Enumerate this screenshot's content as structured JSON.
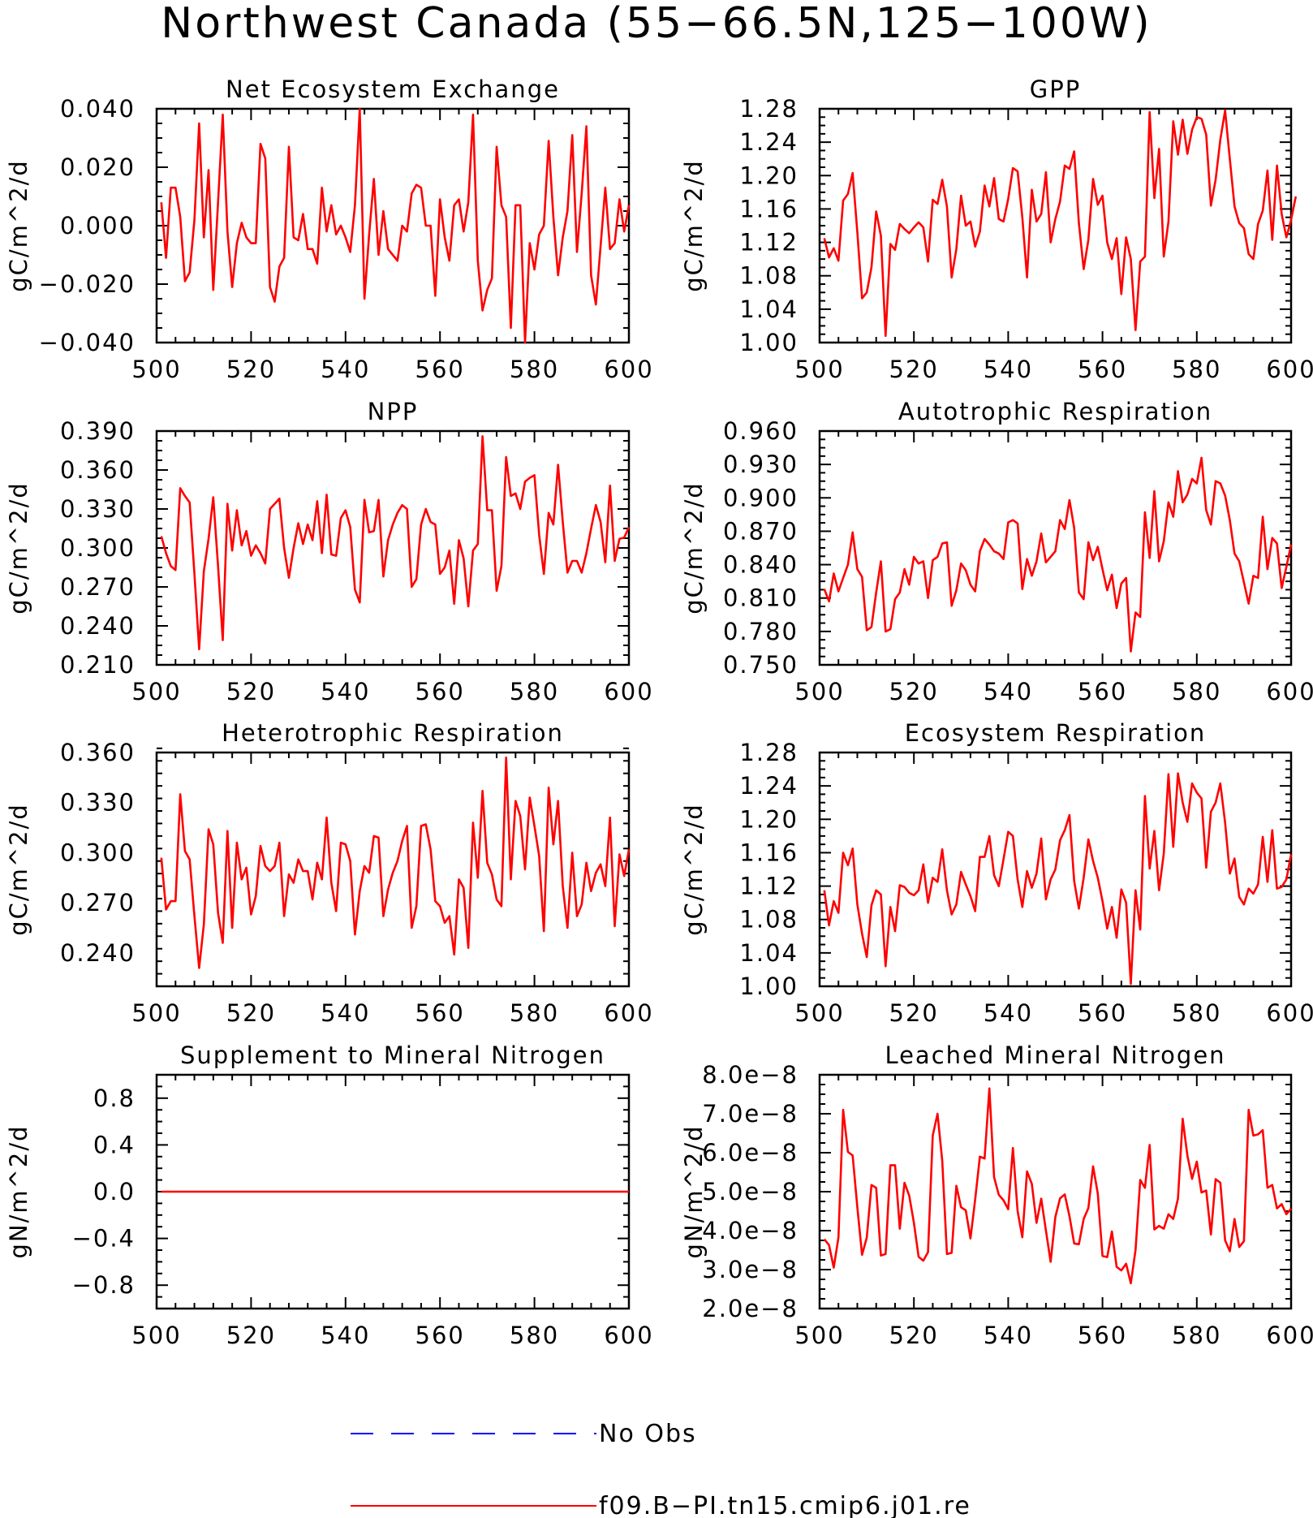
{
  "figure": {
    "title": "Northwest Canada (55−66.5N,125−100W)",
    "x_ticks": [
      500,
      520,
      540,
      560,
      580,
      600
    ],
    "legend": [
      {
        "label": "No Obs",
        "color": "#0000ff",
        "style": "dashed"
      },
      {
        "label": "f09.B−PI.tn15.cmip6.j01.re",
        "color": "#ff0000",
        "style": "solid"
      }
    ]
  },
  "chart_data": [
    {
      "type": "line",
      "title": "Net Ecosystem Exchange",
      "ylabel": "gC/m^2/d",
      "xlim": [
        500,
        600
      ],
      "ylim": [
        -0.04,
        0.04
      ],
      "y_ticks": [
        -0.04,
        -0.02,
        0,
        0.02,
        0.04
      ],
      "y_tick_labels": [
        "−0.040",
        "−0.020",
        "0.000",
        "0.020",
        "0.040"
      ],
      "x_ticks": [
        500,
        520,
        540,
        560,
        580,
        600
      ],
      "series": [
        {
          "color": "#ff0000",
          "x_start": 501,
          "values": [
            0.008,
            -0.011,
            0.013,
            0.013,
            0.003,
            -0.019,
            -0.016,
            0.002,
            0.035,
            -0.004,
            0.019,
            -0.022,
            0.008,
            0.038,
            -0.002,
            -0.021,
            -0.006,
            0.001,
            -0.004,
            -0.006,
            -0.006,
            0.028,
            0.023,
            -0.021,
            -0.026,
            -0.014,
            -0.011,
            0.027,
            -0.004,
            -0.005,
            0.004,
            -0.008,
            -0.008,
            -0.013,
            0.013,
            -0.002,
            0.007,
            -0.003,
            0.0,
            -0.004,
            -0.009,
            0.007,
            0.04,
            -0.025,
            -0.003,
            0.016,
            -0.01,
            0.005,
            -0.008,
            -0.01,
            -0.012,
            0.0,
            -0.002,
            0.011,
            0.014,
            0.013,
            0.0,
            0.0,
            -0.024,
            0.009,
            -0.004,
            -0.012,
            0.007,
            0.009,
            -0.002,
            0.008,
            0.038,
            -0.012,
            -0.029,
            -0.022,
            -0.018,
            0.027,
            0.007,
            0.003,
            -0.035,
            0.007,
            0.007,
            -0.04,
            -0.006,
            -0.015,
            -0.003,
            -0.0,
            0.029,
            0.003,
            -0.017,
            -0.004,
            0.005,
            0.031,
            -0.009,
            0.011,
            0.034,
            -0.017,
            -0.027,
            -0.007,
            0.013,
            -0.008,
            -0.006,
            0.009,
            -0.002,
            0.007
          ]
        }
      ]
    },
    {
      "type": "line",
      "title": "GPP",
      "ylabel": "gC/m^2/d",
      "xlim": [
        500,
        600
      ],
      "ylim": [
        1.0,
        1.28
      ],
      "y_ticks": [
        1.0,
        1.04,
        1.08,
        1.12,
        1.16,
        1.2,
        1.24,
        1.28
      ],
      "y_tick_labels": [
        "1.00",
        "1.04",
        "1.08",
        "1.12",
        "1.16",
        "1.20",
        "1.24",
        "1.28"
      ],
      "x_ticks": [
        500,
        520,
        540,
        560,
        580,
        600
      ],
      "series": [
        {
          "color": "#ff0000",
          "x_start": 501,
          "values": [
            1.125,
            1.102,
            1.113,
            1.098,
            1.17,
            1.178,
            1.203,
            1.132,
            1.053,
            1.06,
            1.09,
            1.157,
            1.128,
            1.008,
            1.118,
            1.111,
            1.142,
            1.136,
            1.131,
            1.138,
            1.144,
            1.138,
            1.097,
            1.171,
            1.166,
            1.195,
            1.163,
            1.078,
            1.112,
            1.176,
            1.14,
            1.145,
            1.115,
            1.133,
            1.188,
            1.163,
            1.197,
            1.148,
            1.145,
            1.172,
            1.209,
            1.205,
            1.15,
            1.078,
            1.183,
            1.145,
            1.154,
            1.204,
            1.12,
            1.148,
            1.169,
            1.212,
            1.208,
            1.229,
            1.143,
            1.088,
            1.123,
            1.196,
            1.165,
            1.176,
            1.12,
            1.1,
            1.125,
            1.058,
            1.126,
            1.1,
            1.015,
            1.097,
            1.103,
            1.276,
            1.173,
            1.232,
            1.103,
            1.145,
            1.265,
            1.225,
            1.267,
            1.226,
            1.255,
            1.27,
            1.268,
            1.249,
            1.164,
            1.195,
            1.243,
            1.278,
            1.22,
            1.163,
            1.143,
            1.137,
            1.106,
            1.1,
            1.142,
            1.158,
            1.206,
            1.123,
            1.212,
            1.154,
            1.126,
            1.147,
            1.175
          ]
        }
      ]
    },
    {
      "type": "line",
      "title": "NPP",
      "ylabel": "gC/m^2/d",
      "xlim": [
        500,
        600
      ],
      "ylim": [
        0.21,
        0.39
      ],
      "y_ticks": [
        0.21,
        0.24,
        0.27,
        0.3,
        0.33,
        0.36,
        0.39
      ],
      "y_tick_labels": [
        "0.210",
        "0.240",
        "0.270",
        "0.300",
        "0.330",
        "0.360",
        "0.390"
      ],
      "x_ticks": [
        500,
        520,
        540,
        560,
        580,
        600
      ],
      "series": [
        {
          "color": "#ff0000",
          "x_start": 501,
          "values": [
            0.309,
            0.296,
            0.286,
            0.283,
            0.346,
            0.34,
            0.335,
            0.28,
            0.222,
            0.282,
            0.307,
            0.339,
            0.286,
            0.229,
            0.334,
            0.298,
            0.329,
            0.302,
            0.313,
            0.294,
            0.302,
            0.296,
            0.288,
            0.33,
            0.334,
            0.338,
            0.3,
            0.277,
            0.3,
            0.319,
            0.303,
            0.318,
            0.306,
            0.336,
            0.296,
            0.341,
            0.295,
            0.294,
            0.323,
            0.329,
            0.316,
            0.268,
            0.258,
            0.337,
            0.312,
            0.313,
            0.337,
            0.278,
            0.306,
            0.318,
            0.327,
            0.333,
            0.33,
            0.27,
            0.276,
            0.318,
            0.33,
            0.32,
            0.318,
            0.28,
            0.285,
            0.298,
            0.257,
            0.306,
            0.292,
            0.255,
            0.298,
            0.303,
            0.386,
            0.329,
            0.329,
            0.267,
            0.286,
            0.37,
            0.34,
            0.342,
            0.33,
            0.351,
            0.354,
            0.356,
            0.31,
            0.28,
            0.327,
            0.318,
            0.364,
            0.32,
            0.281,
            0.29,
            0.29,
            0.281,
            0.296,
            0.315,
            0.333,
            0.32,
            0.289,
            0.348,
            0.29,
            0.307,
            0.308,
            0.316
          ]
        }
      ]
    },
    {
      "type": "line",
      "title": "Autotrophic Respiration",
      "ylabel": "gC/m^2/d",
      "xlim": [
        500,
        600
      ],
      "ylim": [
        0.75,
        0.96
      ],
      "y_ticks": [
        0.75,
        0.78,
        0.81,
        0.84,
        0.87,
        0.9,
        0.93,
        0.96
      ],
      "y_tick_labels": [
        "0.750",
        "0.780",
        "0.810",
        "0.840",
        "0.870",
        "0.900",
        "0.930",
        "0.960"
      ],
      "x_ticks": [
        500,
        520,
        540,
        560,
        580,
        600
      ],
      "series": [
        {
          "color": "#ff0000",
          "x_start": 501,
          "values": [
            0.818,
            0.807,
            0.832,
            0.816,
            0.828,
            0.84,
            0.869,
            0.836,
            0.829,
            0.781,
            0.784,
            0.815,
            0.843,
            0.78,
            0.782,
            0.809,
            0.815,
            0.836,
            0.822,
            0.847,
            0.841,
            0.843,
            0.81,
            0.844,
            0.847,
            0.859,
            0.86,
            0.803,
            0.817,
            0.841,
            0.835,
            0.822,
            0.816,
            0.852,
            0.863,
            0.858,
            0.852,
            0.85,
            0.845,
            0.878,
            0.88,
            0.877,
            0.818,
            0.845,
            0.83,
            0.843,
            0.868,
            0.842,
            0.847,
            0.852,
            0.88,
            0.872,
            0.898,
            0.873,
            0.815,
            0.809,
            0.86,
            0.844,
            0.856,
            0.836,
            0.817,
            0.831,
            0.801,
            0.823,
            0.828,
            0.762,
            0.797,
            0.793,
            0.887,
            0.846,
            0.906,
            0.843,
            0.861,
            0.896,
            0.883,
            0.924,
            0.896,
            0.903,
            0.917,
            0.913,
            0.936,
            0.889,
            0.876,
            0.915,
            0.913,
            0.902,
            0.88,
            0.85,
            0.843,
            0.824,
            0.805,
            0.83,
            0.828,
            0.883,
            0.836,
            0.864,
            0.859,
            0.819,
            0.838,
            0.858
          ]
        }
      ]
    },
    {
      "type": "line",
      "title": "Heterotrophic Respiration",
      "ylabel": "gC/m^2/d",
      "xlim": [
        500,
        600
      ],
      "ylim": [
        0.22,
        0.36
      ],
      "y_ticks": [
        0.24,
        0.27,
        0.3,
        0.33,
        0.36
      ],
      "y_tick_labels": [
        "0.240",
        "0.270",
        "0.300",
        "0.330",
        "0.360"
      ],
      "x_ticks": [
        500,
        520,
        540,
        560,
        580,
        600
      ],
      "series": [
        {
          "color": "#ff0000",
          "x_start": 501,
          "values": [
            0.297,
            0.266,
            0.271,
            0.271,
            0.335,
            0.301,
            0.296,
            0.262,
            0.231,
            0.257,
            0.314,
            0.305,
            0.264,
            0.246,
            0.313,
            0.255,
            0.306,
            0.284,
            0.291,
            0.263,
            0.274,
            0.304,
            0.292,
            0.289,
            0.292,
            0.306,
            0.262,
            0.287,
            0.282,
            0.296,
            0.289,
            0.289,
            0.272,
            0.294,
            0.284,
            0.321,
            0.282,
            0.265,
            0.306,
            0.305,
            0.295,
            0.251,
            0.277,
            0.292,
            0.288,
            0.31,
            0.309,
            0.262,
            0.278,
            0.288,
            0.295,
            0.307,
            0.316,
            0.255,
            0.268,
            0.316,
            0.317,
            0.302,
            0.271,
            0.268,
            0.258,
            0.262,
            0.239,
            0.284,
            0.279,
            0.243,
            0.318,
            0.285,
            0.337,
            0.294,
            0.287,
            0.272,
            0.268,
            0.357,
            0.284,
            0.331,
            0.322,
            0.29,
            0.333,
            0.316,
            0.298,
            0.253,
            0.339,
            0.305,
            0.331,
            0.28,
            0.255,
            0.3,
            0.262,
            0.269,
            0.294,
            0.277,
            0.288,
            0.293,
            0.28,
            0.321,
            0.256,
            0.299,
            0.286,
            0.302
          ]
        }
      ]
    },
    {
      "type": "line",
      "title": "Ecosystem Respiration",
      "ylabel": "gC/m^2/d",
      "xlim": [
        500,
        600
      ],
      "ylim": [
        1.0,
        1.28
      ],
      "y_ticks": [
        1.0,
        1.04,
        1.08,
        1.12,
        1.16,
        1.2,
        1.24,
        1.28
      ],
      "y_tick_labels": [
        "1.00",
        "1.04",
        "1.08",
        "1.12",
        "1.16",
        "1.20",
        "1.24",
        "1.28"
      ],
      "x_ticks": [
        500,
        520,
        540,
        560,
        580,
        600
      ],
      "series": [
        {
          "color": "#ff0000",
          "x_start": 501,
          "values": [
            1.115,
            1.073,
            1.102,
            1.088,
            1.16,
            1.145,
            1.165,
            1.098,
            1.063,
            1.035,
            1.097,
            1.115,
            1.11,
            1.024,
            1.095,
            1.066,
            1.121,
            1.119,
            1.112,
            1.109,
            1.115,
            1.146,
            1.1,
            1.13,
            1.125,
            1.164,
            1.115,
            1.086,
            1.098,
            1.137,
            1.122,
            1.108,
            1.09,
            1.155,
            1.155,
            1.18,
            1.133,
            1.12,
            1.152,
            1.185,
            1.18,
            1.128,
            1.095,
            1.138,
            1.118,
            1.135,
            1.177,
            1.104,
            1.128,
            1.14,
            1.175,
            1.187,
            1.205,
            1.126,
            1.093,
            1.13,
            1.176,
            1.15,
            1.13,
            1.102,
            1.069,
            1.095,
            1.058,
            1.116,
            1.1,
            1.003,
            1.115,
            1.068,
            1.228,
            1.141,
            1.186,
            1.115,
            1.159,
            1.254,
            1.167,
            1.255,
            1.22,
            1.197,
            1.243,
            1.232,
            1.225,
            1.142,
            1.209,
            1.22,
            1.243,
            1.196,
            1.135,
            1.153,
            1.107,
            1.098,
            1.117,
            1.111,
            1.122,
            1.179,
            1.125,
            1.187,
            1.117,
            1.119,
            1.128,
            1.158
          ]
        }
      ]
    },
    {
      "type": "line",
      "title": "Supplement to Mineral Nitrogen",
      "ylabel": "gN/m^2/d",
      "xlim": [
        500,
        600
      ],
      "ylim": [
        -1.0,
        1.0
      ],
      "y_ticks": [
        -0.8,
        -0.4,
        0,
        0.4,
        0.8
      ],
      "y_tick_labels": [
        "−0.8",
        "−0.4",
        "0.0",
        "0.4",
        "0.8"
      ],
      "x_ticks": [
        500,
        520,
        540,
        560,
        580,
        600
      ],
      "series": [
        {
          "color": "#ff0000",
          "x_start": 501,
          "constant": 0,
          "count": 100
        }
      ]
    },
    {
      "type": "line",
      "title": "Leached Mineral Nitrogen",
      "ylabel": "gN/m^2/d",
      "xlim": [
        500,
        600
      ],
      "ylim": [
        2e-08,
        8e-08
      ],
      "y_ticks": [
        2e-08,
        3e-08,
        4e-08,
        5e-08,
        6e-08,
        7e-08,
        8e-08
      ],
      "y_tick_labels": [
        "2.0e−8",
        "3.0e−8",
        "4.0e−8",
        "5.0e−8",
        "6.0e−8",
        "7.0e−8",
        "8.0e−8"
      ],
      "x_ticks": [
        500,
        520,
        540,
        560,
        580,
        600
      ],
      "series": [
        {
          "color": "#ff0000",
          "x_start": 501,
          "scale": 1e-08,
          "values": [
            3.78,
            3.63,
            3.05,
            3.82,
            7.1,
            6.02,
            5.93,
            4.6,
            3.38,
            3.82,
            5.17,
            5.1,
            3.36,
            3.4,
            5.68,
            5.68,
            4.05,
            5.23,
            4.9,
            4.2,
            3.33,
            3.23,
            3.45,
            6.44,
            7.0,
            5.8,
            3.4,
            3.43,
            5.15,
            4.6,
            4.52,
            3.8,
            4.8,
            5.9,
            5.85,
            7.65,
            5.37,
            4.92,
            4.78,
            4.55,
            6.12,
            4.5,
            3.83,
            5.52,
            5.2,
            4.2,
            4.82,
            4.0,
            3.2,
            4.35,
            4.83,
            4.93,
            4.37,
            3.67,
            3.65,
            4.3,
            4.58,
            5.65,
            4.95,
            3.35,
            3.32,
            3.98,
            3.07,
            2.98,
            3.15,
            2.65,
            3.5,
            5.3,
            5.1,
            6.2,
            4.03,
            4.12,
            4.05,
            4.42,
            4.3,
            4.82,
            6.87,
            5.93,
            5.33,
            5.77,
            4.98,
            5.03,
            3.9,
            5.32,
            5.23,
            3.75,
            3.47,
            4.3,
            3.58,
            3.73,
            7.1,
            6.44,
            6.47,
            6.58,
            5.1,
            5.17,
            4.57,
            4.68,
            4.42,
            4.56
          ]
        }
      ]
    }
  ]
}
